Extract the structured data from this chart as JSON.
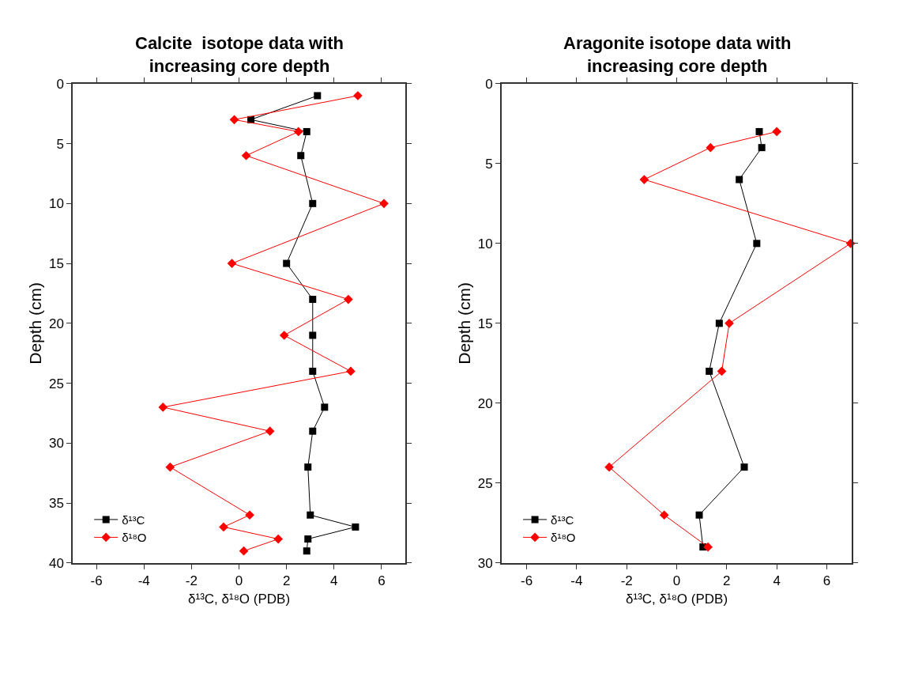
{
  "chart_data": [
    {
      "type": "line",
      "title": "Calcite  isotope data with\nincreasing core depth",
      "xlabel": "δ¹³C, δ¹⁸O (PDB)",
      "ylabel": "Depth (cm)",
      "orientation": "horizontal",
      "xlim": [
        -7,
        7
      ],
      "xticks": [
        -6,
        -4,
        -2,
        0,
        2,
        4,
        6
      ],
      "ylim": [
        40,
        0
      ],
      "yticks": [
        0,
        5,
        10,
        15,
        20,
        25,
        30,
        35,
        40
      ],
      "legend": "bottom left",
      "line_style": "solid",
      "series": [
        {
          "name": "δ¹³C",
          "color": "#000000",
          "marker": "square",
          "x": [
            1,
            3,
            4,
            6,
            10,
            15,
            18,
            21,
            24,
            27,
            29,
            32,
            36,
            37,
            38,
            39
          ],
          "values": [
            3.3,
            0.5,
            2.85,
            2.6,
            3.1,
            2.0,
            3.1,
            3.1,
            3.1,
            3.6,
            3.1,
            2.9,
            3.0,
            4.9,
            2.9,
            2.85
          ]
        },
        {
          "name": "δ¹⁸O",
          "color": "#ff0000",
          "marker": "diamond",
          "x": [
            1,
            3,
            4,
            6,
            10,
            15,
            18,
            21,
            24,
            27,
            29,
            32,
            36,
            37,
            38,
            39
          ],
          "values": [
            5.0,
            -0.2,
            2.5,
            0.3,
            6.1,
            -0.3,
            4.6,
            1.9,
            4.7,
            -3.2,
            1.3,
            -2.9,
            0.45,
            -0.65,
            1.65,
            0.2
          ]
        }
      ]
    },
    {
      "type": "line",
      "title": "Aragonite isotope data with\nincreasing core depth",
      "xlabel": "δ¹³C, δ¹⁸O (PDB)",
      "ylabel": "Depth (cm)",
      "orientation": "horizontal",
      "xlim": [
        -7,
        7
      ],
      "xticks": [
        -6,
        -4,
        -2,
        0,
        2,
        4,
        6
      ],
      "ylim": [
        30,
        0
      ],
      "yticks": [
        0,
        5,
        10,
        15,
        20,
        25,
        30
      ],
      "legend": "bottom left",
      "line_style": "solid",
      "series": [
        {
          "name": "δ¹³C",
          "color": "#000000",
          "marker": "square",
          "x": [
            3,
            4,
            6,
            10,
            15,
            18,
            24,
            27,
            29
          ],
          "values": [
            3.3,
            3.4,
            2.5,
            3.2,
            1.7,
            1.3,
            2.7,
            0.9,
            1.05
          ]
        },
        {
          "name": "δ¹⁸O",
          "color": "#ff0000",
          "marker": "diamond",
          "x": [
            3,
            4,
            6,
            10,
            15,
            18,
            24,
            27,
            29
          ],
          "values": [
            4.0,
            1.35,
            -1.3,
            6.95,
            2.1,
            1.8,
            -2.7,
            -0.5,
            1.25
          ]
        }
      ]
    }
  ]
}
